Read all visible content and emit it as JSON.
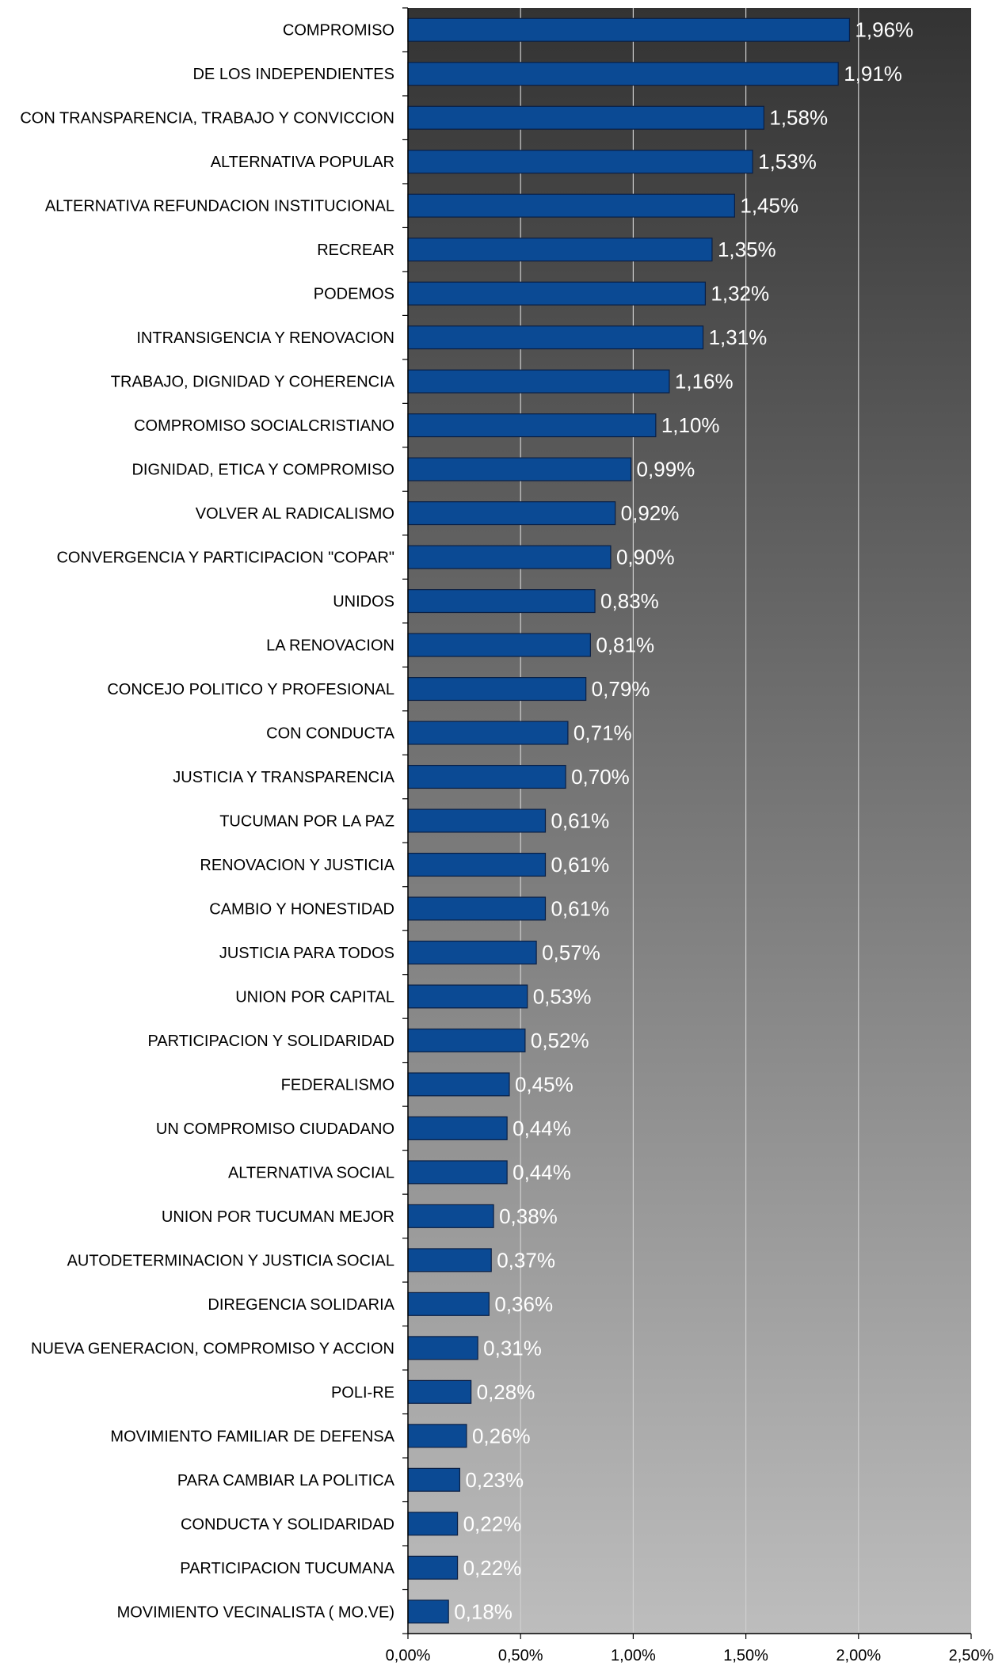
{
  "chart_data": {
    "type": "bar",
    "orientation": "horizontal",
    "categories": [
      "COMPROMISO",
      "DE LOS INDEPENDIENTES",
      "CON TRANSPARENCIA, TRABAJO Y CONVICCION",
      "ALTERNATIVA POPULAR",
      "ALTERNATIVA REFUNDACION INSTITUCIONAL",
      "RECREAR",
      "PODEMOS",
      "INTRANSIGENCIA Y RENOVACION",
      "TRABAJO, DIGNIDAD Y COHERENCIA",
      "COMPROMISO SOCIALCRISTIANO",
      "DIGNIDAD, ETICA Y COMPROMISO",
      "VOLVER AL RADICALISMO",
      "CONVERGENCIA Y PARTICIPACION \"COPAR\"",
      "UNIDOS",
      "LA RENOVACION",
      "CONCEJO POLITICO Y PROFESIONAL",
      "CON CONDUCTA",
      "JUSTICIA Y TRANSPARENCIA",
      "TUCUMAN POR LA PAZ",
      "RENOVACION Y JUSTICIA",
      "CAMBIO Y HONESTIDAD",
      "JUSTICIA PARA TODOS",
      "UNION POR CAPITAL",
      "PARTICIPACION Y SOLIDARIDAD",
      "FEDERALISMO",
      "UN COMPROMISO CIUDADANO",
      "ALTERNATIVA SOCIAL",
      "UNION POR TUCUMAN MEJOR",
      "AUTODETERMINACION Y JUSTICIA SOCIAL",
      "DIREGENCIA SOLIDARIA",
      "NUEVA GENERACION, COMPROMISO Y ACCION",
      "POLI-RE",
      "MOVIMIENTO FAMILIAR DE DEFENSA",
      "PARA CAMBIAR LA POLITICA",
      "CONDUCTA Y SOLIDARIDAD",
      "PARTICIPACION TUCUMANA",
      "MOVIMIENTO VECINALISTA ( MO.VE)"
    ],
    "values": [
      1.96,
      1.91,
      1.58,
      1.53,
      1.45,
      1.35,
      1.32,
      1.31,
      1.16,
      1.1,
      0.99,
      0.92,
      0.9,
      0.83,
      0.81,
      0.79,
      0.71,
      0.7,
      0.61,
      0.61,
      0.61,
      0.57,
      0.53,
      0.52,
      0.45,
      0.44,
      0.44,
      0.38,
      0.37,
      0.36,
      0.31,
      0.28,
      0.26,
      0.23,
      0.22,
      0.22,
      0.18
    ],
    "value_labels": [
      "1,96%",
      "1,91%",
      "1,58%",
      "1,53%",
      "1,45%",
      "1,35%",
      "1,32%",
      "1,31%",
      "1,16%",
      "1,10%",
      "0,99%",
      "0,92%",
      "0,90%",
      "0,83%",
      "0,81%",
      "0,79%",
      "0,71%",
      "0,70%",
      "0,61%",
      "0,61%",
      "0,61%",
      "0,57%",
      "0,53%",
      "0,52%",
      "0,45%",
      "0,44%",
      "0,44%",
      "0,38%",
      "0,37%",
      "0,36%",
      "0,31%",
      "0,28%",
      "0,26%",
      "0,23%",
      "0,22%",
      "0,22%",
      "0,18%"
    ],
    "xlim": [
      0,
      2.5
    ],
    "x_ticks": [
      0,
      0.5,
      1.0,
      1.5,
      2.0,
      2.5
    ],
    "x_tick_labels": [
      "0,00%",
      "0,50%",
      "1,00%",
      "1,50%",
      "2,00%",
      "2,50%"
    ],
    "title": "",
    "xlabel": "",
    "ylabel": "",
    "grid": "vertical",
    "legend": "none",
    "colors": {
      "bar_fill": "#0b4a94",
      "bar_stroke": "#0a1f44",
      "plot_bg_top": "#333333",
      "plot_bg_bottom": "#bdbdbd",
      "gridline": "#cfcfcf",
      "value_label": "#ffffff",
      "category_label": "#000000"
    }
  }
}
